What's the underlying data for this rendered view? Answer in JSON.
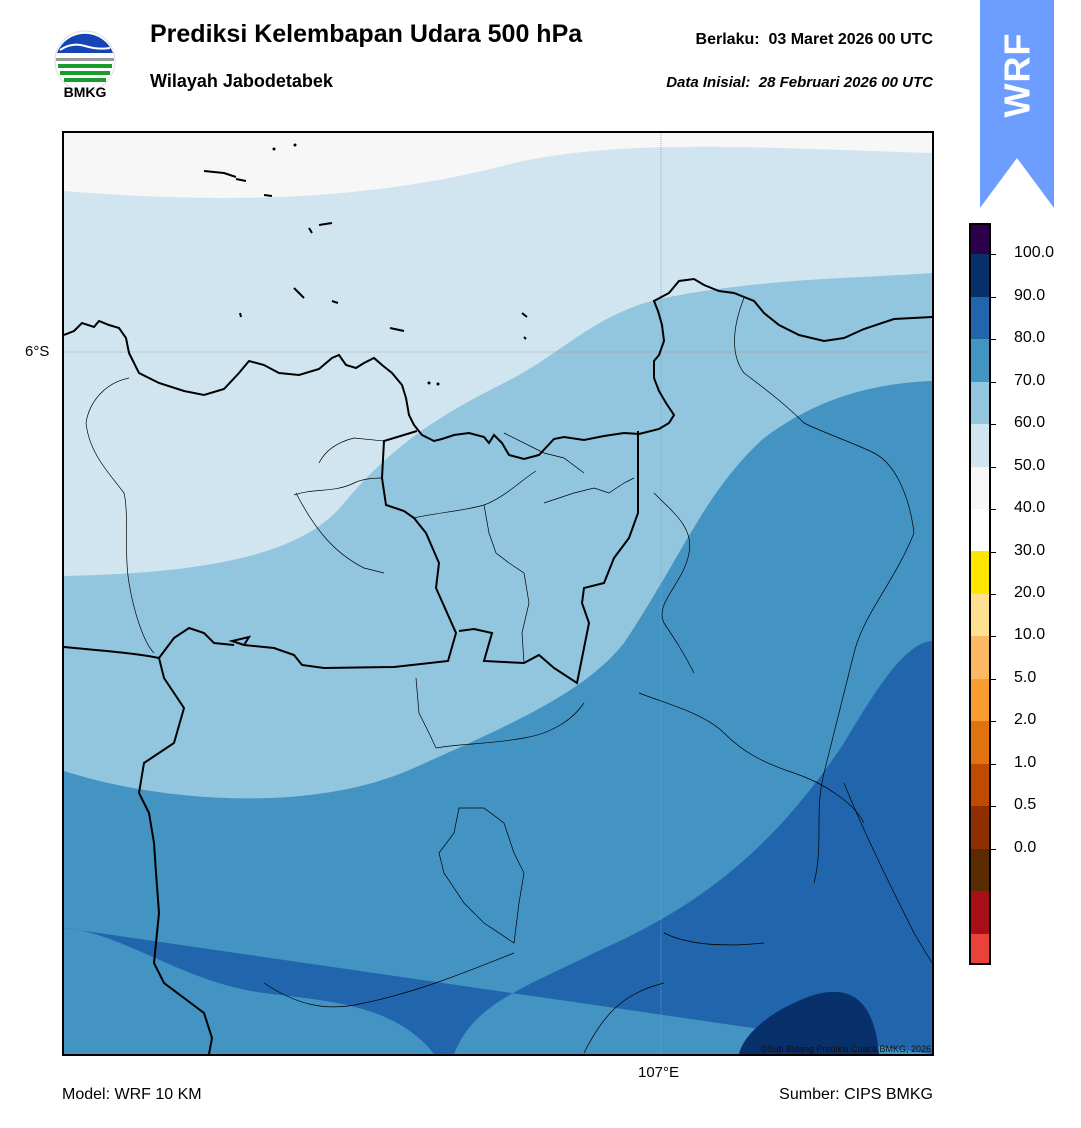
{
  "header": {
    "title": "Prediksi Kelembapan Udara 500 hPa",
    "subtitle": "Wilayah Jabodetabek",
    "valid_label": "Berlaku:",
    "valid_time": "03 Maret 2026 00 UTC",
    "init_label": "Data Inisial:",
    "init_time": "28 Februari 2026 00 UTC"
  },
  "logo": {
    "text": "BMKG",
    "icon": "bmkg-logo"
  },
  "badge": {
    "text": "WRF",
    "color": "#6d9eff"
  },
  "map": {
    "lat_label": "6°S",
    "lon_label": "107°E",
    "credit": "©Sub Bidang Prediksi Cuaca BMKG, 2026"
  },
  "footer": {
    "model": "Model: WRF 10 KM",
    "source": "Sumber: CIPS BMKG"
  },
  "colorbar": {
    "labels": [
      "100.0",
      "90.0",
      "80.0",
      "70.0",
      "60.0",
      "50.0",
      "40.0",
      "30.0",
      "20.0",
      "10.0",
      "5.0",
      "2.0",
      "1.0",
      "0.5",
      "0.0"
    ],
    "colors_top_to_bottom": [
      "#2d004b",
      "#08306b",
      "#2166ac",
      "#4393c3",
      "#92c5de",
      "#d1e5f0",
      "#f7f7f7",
      "#ffffff",
      "#ffe600",
      "#fee090",
      "#fdb863",
      "#f89d2e",
      "#e0730f",
      "#c04a00",
      "#903000",
      "#5a2a00",
      "#a50f15",
      "#e8423a"
    ]
  }
}
